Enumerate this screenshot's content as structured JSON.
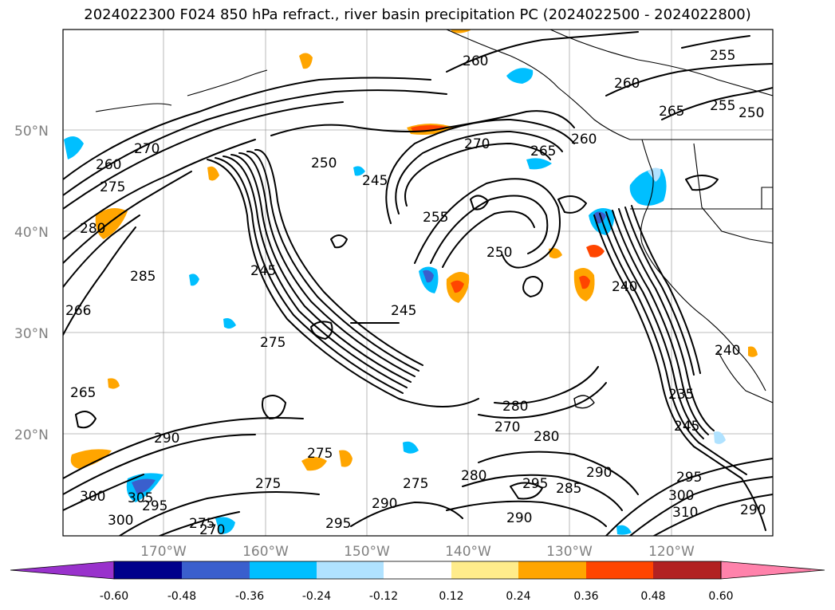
{
  "title": "2024022300 F024 850 hPa refract., river basin precipitation PC (2024022500 - 2024022800)",
  "latitude_labels": [
    "50°N",
    "40°N",
    "30°N",
    "20°N"
  ],
  "longitude_labels": [
    "170°W",
    "160°W",
    "150°W",
    "140°W",
    "130°W",
    "120°W"
  ],
  "contour_labels": [
    "260",
    "270",
    "275",
    "280",
    "285",
    "265",
    "266",
    "290",
    "300",
    "305",
    "295",
    "300",
    "275",
    "270",
    "250",
    "245",
    "245",
    "270",
    "265",
    "260",
    "255",
    "260",
    "265",
    "255",
    "250",
    "260",
    "255",
    "250",
    "240",
    "235",
    "245",
    "280",
    "270",
    "280",
    "290",
    "285",
    "295",
    "290",
    "295",
    "275",
    "275",
    "275",
    "280",
    "290",
    "295",
    "300",
    "310",
    "290",
    "245",
    "240",
    "275"
  ],
  "colorbar": {
    "ticks": [
      "-0.60",
      "-0.48",
      "-0.36",
      "-0.24",
      "-0.12",
      "0.12",
      "0.24",
      "0.36",
      "0.48",
      "0.60"
    ],
    "colors": [
      "#9932cc",
      "#00008b",
      "#3a5fcd",
      "#00bfff",
      "#b0e2ff",
      "#ffffff",
      "#ffec8b",
      "#ffa500",
      "#ff4500",
      "#b22222",
      "#ff82ab"
    ]
  }
}
